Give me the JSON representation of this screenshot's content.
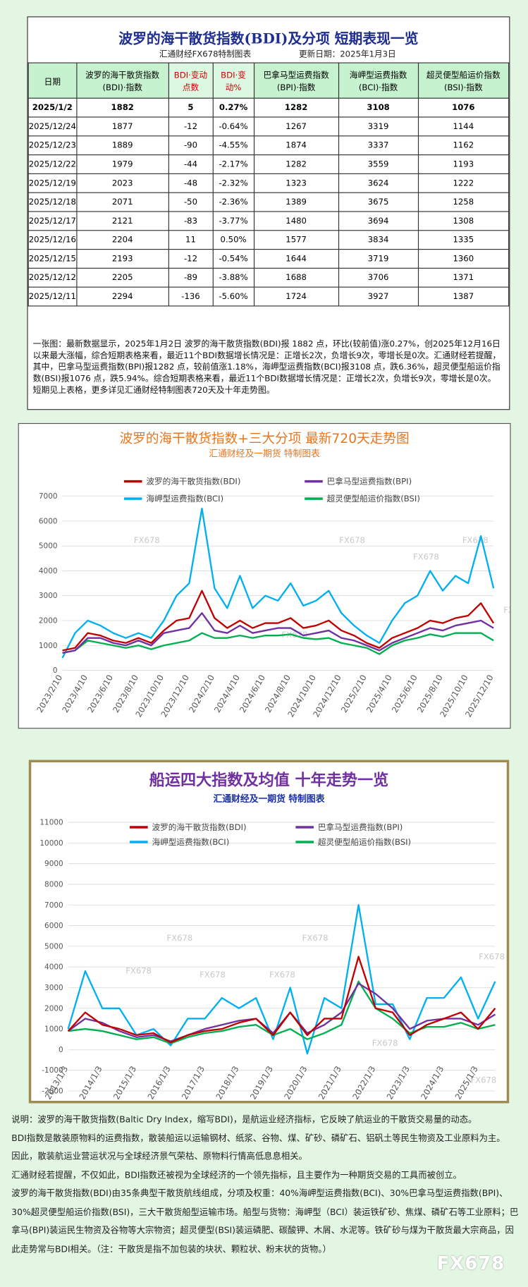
{
  "header": {
    "title": "波罗的海干散货指数(BDI)及分项  短期表现一览",
    "subtitle": "汇通财经FX678特制图表",
    "update": "更新日期：2025年1月3日"
  },
  "table": {
    "columns": [
      "日期",
      "波罗的海干散货指数(BDI)·指数",
      "BDI·变动点数",
      "BDI·变动%",
      "巴拿马型运费指数(BPI)·指数",
      "海岬型运费指数(BCI)·指数",
      "超灵便型船运价指数(BSI)·指数"
    ],
    "rows": [
      [
        "2025/1/2",
        "1882",
        "5",
        "0.27%",
        "1282",
        "3108",
        "1076"
      ],
      [
        "2025/12/24",
        "1877",
        "-12",
        "-0.64%",
        "1267",
        "3319",
        "1144"
      ],
      [
        "2025/12/23",
        "1889",
        "-90",
        "-4.55%",
        "1874",
        "3337",
        "1162"
      ],
      [
        "2025/12/22",
        "1979",
        "-44",
        "-2.17%",
        "1282",
        "3559",
        "1193"
      ],
      [
        "2025/12/19",
        "2023",
        "-48",
        "-2.32%",
        "1323",
        "3624",
        "1222"
      ],
      [
        "2025/12/18",
        "2071",
        "-50",
        "-2.36%",
        "1389",
        "3675",
        "1258"
      ],
      [
        "2025/12/17",
        "2121",
        "-83",
        "-3.77%",
        "1480",
        "3694",
        "1308"
      ],
      [
        "2025/12/16",
        "2204",
        "11",
        "0.50%",
        "1577",
        "3834",
        "1335"
      ],
      [
        "2025/12/15",
        "2193",
        "-12",
        "-0.54%",
        "1644",
        "3719",
        "1360"
      ],
      [
        "2025/12/12",
        "2205",
        "-89",
        "-3.88%",
        "1688",
        "3706",
        "1371"
      ],
      [
        "2025/12/11",
        "2294",
        "-136",
        "-5.60%",
        "1724",
        "3927",
        "1387"
      ]
    ]
  },
  "summary": "一张图：最新数据显示，2025年1月2日 波罗的海干散货指数(BDI)报 1882 点，环比(较前值)涨0.27%，创2025年12月16日以来最大涨幅，综合短期表格来看，最近11个BDI数据增长情况是：正增长2次，负增长9次，零增长是0次。汇通财经若提醒，其中，巴拿马型运费指数(BPI)报1282 点，较前值涨1.18%，海岬型运费指数(BCI)报3108 点，跌6.36%，超灵便型船运价指数(BSI)报1076 点，跌5.94%。综合短期表格来看，最近11个BDI数据增长情况是：正增长2次，负增长9次，零增长是0次。短期见上表格，更多详见汇通财经特制图表720天及十年走势图。",
  "chart_data": [
    {
      "type": "line",
      "title": "波罗的海干散货指数+三大分项  最新720天走势图",
      "subtitle": "汇通财经及一期货  特制图表",
      "categories": [
        "2023/2/10",
        null,
        "2023/4/10",
        null,
        "2023/6/10",
        null,
        "2023/8/10",
        null,
        "2023/10/10",
        null,
        "2023/12/10",
        null,
        "2024/2/10",
        null,
        "2024/4/10",
        null,
        "2024/6/10",
        null,
        "2024/8/10",
        null,
        "2024/10/10",
        null,
        "2024/12/10",
        null,
        "2025/2/10",
        null,
        "2025/4/10",
        null,
        "2025/6/10",
        null,
        "2025/8/10",
        null,
        "2025/10/10",
        null,
        "2025/12/10"
      ],
      "series": [
        {
          "name": "波罗的海干散货指数(BDI)",
          "color": "#c00000",
          "values": [
            800,
            900,
            1500,
            1400,
            1200,
            1100,
            1300,
            1100,
            1600,
            2000,
            2100,
            3200,
            2100,
            1700,
            2000,
            1700,
            1900,
            1900,
            2100,
            1700,
            1800,
            2000,
            1600,
            1400,
            1100,
            900,
            1300,
            1500,
            1700,
            2000,
            1900,
            2100,
            2200,
            2700,
            1900
          ]
        },
        {
          "name": "巴拿马型运费指数(BPI)",
          "color": "#7030a0",
          "values": [
            700,
            800,
            1300,
            1300,
            1100,
            1000,
            1200,
            1000,
            1500,
            1600,
            1700,
            2300,
            1600,
            1500,
            1800,
            1500,
            1600,
            1700,
            1700,
            1400,
            1500,
            1600,
            1300,
            1200,
            1000,
            800,
            1100,
            1300,
            1500,
            1700,
            1600,
            1800,
            1900,
            2000,
            1700
          ]
        },
        {
          "name": "海岬型运费指数(BCI)",
          "color": "#00b0f0",
          "values": [
            500,
            1500,
            2000,
            1800,
            1500,
            1300,
            1500,
            1300,
            2000,
            3000,
            3500,
            6500,
            3300,
            2500,
            3800,
            2500,
            3000,
            2800,
            3500,
            2600,
            2800,
            3200,
            2300,
            1800,
            1400,
            1100,
            2000,
            2700,
            3000,
            4000,
            3200,
            3800,
            3500,
            5400,
            3300
          ]
        },
        {
          "name": "超灵便型船运价指数(BSI)",
          "color": "#00b050",
          "values": [
            700,
            800,
            1200,
            1100,
            1000,
            900,
            1000,
            850,
            1000,
            1100,
            1200,
            1500,
            1300,
            1300,
            1400,
            1300,
            1400,
            1400,
            1450,
            1300,
            1250,
            1300,
            1100,
            1000,
            900,
            650,
            1000,
            1200,
            1300,
            1450,
            1350,
            1500,
            1500,
            1500,
            1200
          ]
        }
      ],
      "ylim": [
        0,
        7000
      ],
      "yticks": [
        0,
        1000,
        2000,
        3000,
        4000,
        5000,
        6000,
        7000
      ],
      "grid": true,
      "legend": "top"
    },
    {
      "type": "line",
      "title": "船运四大指数及均值 十年走势一览",
      "subtitle": "汇通财经及一期货 特制图表",
      "categories": [
        "2013/1/3",
        null,
        "2014/1/3",
        null,
        "2015/1/3",
        null,
        "2016/1/3",
        null,
        "2017/1/3",
        null,
        "2018/1/3",
        null,
        "2019/1/3",
        null,
        "2020/1/3",
        null,
        "2021/1/3",
        null,
        "2022/1/3",
        null,
        "2023/1/3",
        null,
        "2024/1/3",
        null,
        "2025/1/3",
        null
      ],
      "series": [
        {
          "name": "波罗的海干散货指数(BDI)",
          "color": "#c00000",
          "values": [
            900,
            1800,
            1200,
            1000,
            700,
            800,
            350,
            700,
            900,
            1000,
            1300,
            1500,
            700,
            1800,
            700,
            1500,
            1500,
            4500,
            2000,
            1800,
            700,
            1200,
            1500,
            1800,
            1000,
            2000
          ]
        },
        {
          "name": "巴拿马型运费指数(BPI)",
          "color": "#7030a0",
          "values": [
            900,
            1500,
            1300,
            900,
            600,
            700,
            400,
            700,
            1000,
            1200,
            1400,
            1500,
            800,
            1800,
            800,
            1200,
            1800,
            3200,
            2700,
            2000,
            1000,
            1400,
            1500,
            1500,
            1200,
            1700
          ]
        },
        {
          "name": "海岬型运费指数(BCI)",
          "color": "#00b0f0",
          "values": [
            1000,
            3800,
            2000,
            2000,
            700,
            1000,
            200,
            1500,
            1500,
            2500,
            2000,
            2500,
            500,
            3000,
            -200,
            2500,
            2000,
            7000,
            2200,
            2200,
            500,
            2500,
            2500,
            3500,
            1500,
            3300
          ]
        },
        {
          "name": "超灵便型船运价指数(BSI)",
          "color": "#00b050",
          "values": [
            900,
            1000,
            900,
            700,
            500,
            600,
            300,
            600,
            800,
            900,
            1100,
            1200,
            700,
            1000,
            500,
            800,
            1200,
            3300,
            2000,
            1500,
            800,
            1100,
            1100,
            1300,
            1000,
            1200
          ]
        }
      ],
      "ylim": [
        -2000,
        11000
      ],
      "yticks": [
        -2000,
        -1000,
        0,
        1000,
        2000,
        3000,
        4000,
        5000,
        6000,
        7000,
        8000,
        9000,
        10000,
        11000
      ],
      "grid": true,
      "legend": "top"
    }
  ],
  "notes": [
    "说明：波罗的海干散货指数(Baltic Dry Index，缩写BDI)，是航运业经济指标，它反映了航运业的干散货交易量的动态。",
    "BDI指数是散装原物料的运费指数，散装船运以运输钢材、纸浆、谷物、煤、矿砂、磷矿石、铝矾土等民生物资及工业原料为主。",
    "因此，散装航运业营运状况与全球经济景气荣枯、原物料行情高低息息相关。",
    "汇通财经若提醒，不仅如此，BDI指数还被视为全球经济的一个领先指标，且主要作为一种期货交易的工具而被创立。",
    "波罗的海干散货指数(BDI)由35条典型干散货航线组成，分项及权重：40%海岬型运费指数(BCI)、30%巴拿马型运费指数(BPI)、30%超灵便型船运价指数(BSI)，三大干散货船型运输市场。船型与货物：海岬型（BCI）装运铁矿砂、焦煤、磷矿石等工业原料；巴拿马(BPI)装运民生物资及谷物等大宗物资；超灵便型(BSI)装运磷肥、碳酸钾、木屑、水泥等。铁矿砂与煤为干散货最大宗商品，因此走势常与BDI相关。（注：干散货是指不加包装的块状、颗粒状、粉末状的货物。）"
  ],
  "watermark": "FX678"
}
